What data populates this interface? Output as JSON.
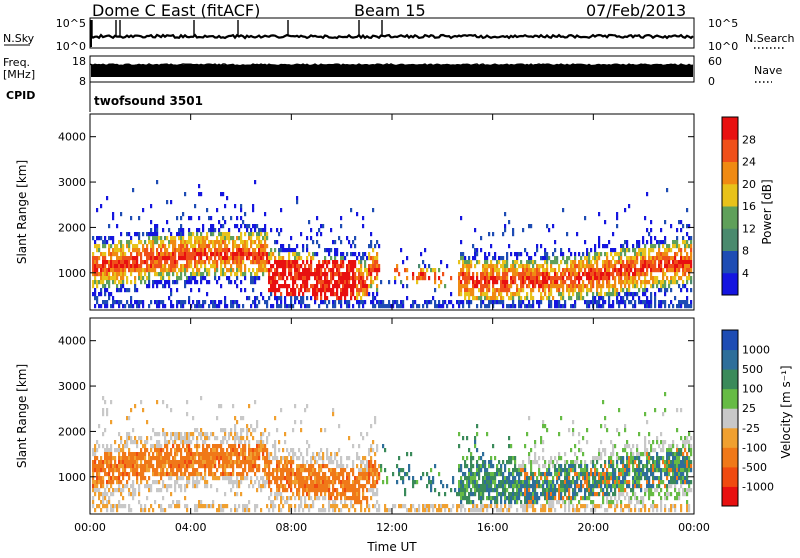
{
  "header": {
    "station": "Dome C East (fitACF)",
    "beam": "Beam 15",
    "date": "07/Feb/2013"
  },
  "panels": {
    "nsky": {
      "label": "N.Sky",
      "right_label": "N.Search",
      "ticks_left": [
        "10^5",
        "10^0"
      ],
      "ticks_right": [
        "10^5",
        "10^0"
      ]
    },
    "freq": {
      "label_top": "Freq.",
      "label_unit": "[MHz]",
      "ticks_left": [
        "18",
        "8"
      ],
      "ticks_right": [
        "60",
        "0"
      ],
      "right_label": "Nave"
    },
    "cpid": {
      "label": "CPID",
      "value": "twofsound 3501"
    }
  },
  "colors": {
    "power_scale": [
      "#1515e0",
      "#1e4cb4",
      "#4a8a6e",
      "#5fa05a",
      "#e8c21a",
      "#f08a12",
      "#f0501a",
      "#e81010"
    ],
    "velocity_scale": [
      "#1e4cb4",
      "#2e6e9a",
      "#3a8a5a",
      "#66bb44",
      "#c8c8c8",
      "#f0a030",
      "#f07818",
      "#f04a10",
      "#e81010"
    ]
  },
  "chart_data": [
    {
      "type": "heatmap",
      "name": "power",
      "ylabel": "Slant Range [km]",
      "x_ticks": [
        "00:00",
        "04:00",
        "08:00",
        "12:00",
        "16:00",
        "20:00",
        "00:00"
      ],
      "x_range_hours": [
        0,
        24
      ],
      "y_ticks": [
        1000,
        2000,
        3000,
        4000
      ],
      "y_range_km": [
        180,
        4500
      ],
      "colorbar": {
        "label": "Power [dB]",
        "tick_labels": [
          "28",
          "24",
          "20",
          "16",
          "12",
          "8",
          "4"
        ],
        "range": [
          0,
          32
        ]
      }
    },
    {
      "type": "heatmap",
      "name": "velocity",
      "xlabel": "Time UT",
      "ylabel": "Slant Range [km]",
      "x_ticks": [
        "00:00",
        "04:00",
        "08:00",
        "12:00",
        "16:00",
        "20:00",
        "00:00"
      ],
      "x_range_hours": [
        0,
        24
      ],
      "y_ticks": [
        1000,
        2000,
        3000,
        4000
      ],
      "y_range_km": [
        180,
        4500
      ],
      "colorbar": {
        "label": "Velocity [m s⁻¹]",
        "tick_labels": [
          "1000",
          "500",
          "100",
          "25",
          "-25",
          "-100",
          "-500",
          "-1000"
        ]
      }
    }
  ]
}
